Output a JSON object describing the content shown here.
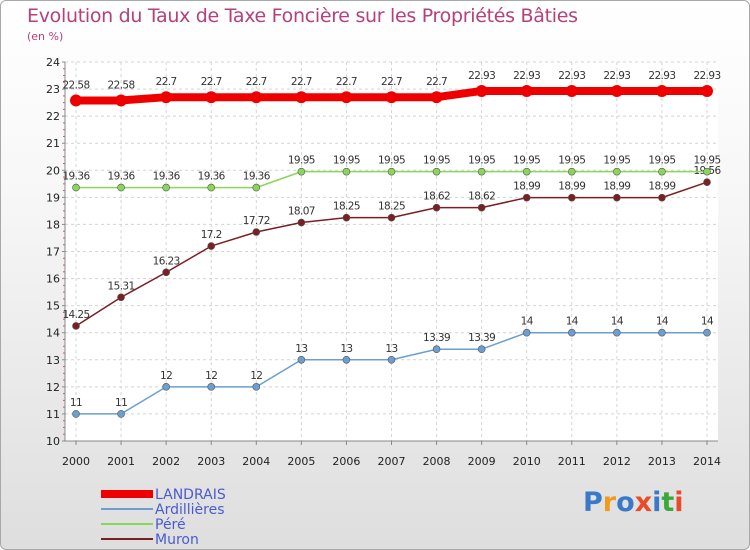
{
  "chart_data": {
    "type": "line",
    "title": "Evolution du Taux de Taxe Foncière sur les Propriétés Bâties",
    "subtitle": "(en %)",
    "x": [
      "2000",
      "2001",
      "2002",
      "2003",
      "2004",
      "2005",
      "2006",
      "2007",
      "2008",
      "2009",
      "2010",
      "2011",
      "2012",
      "2013",
      "2014"
    ],
    "yticks": [
      10,
      11,
      12,
      13,
      14,
      15,
      16,
      17,
      18,
      19,
      20,
      21,
      22,
      23,
      24
    ],
    "ylim": [
      10,
      24
    ],
    "grid": true,
    "legend_position": "bottom-left",
    "series": [
      {
        "name": "LANDRAIS",
        "color": "#ee0000",
        "values": [
          22.58,
          22.58,
          22.7,
          22.7,
          22.7,
          22.7,
          22.7,
          22.7,
          22.7,
          22.93,
          22.93,
          22.93,
          22.93,
          22.93,
          22.93
        ],
        "labels": [
          "22.58",
          "22.58",
          "22.7",
          "22.7",
          "22.7",
          "22.7",
          "22.7",
          "22.7",
          "22.7",
          "22.93",
          "22.93",
          "22.93",
          "22.93",
          "22.93",
          "22.93"
        ]
      },
      {
        "name": "Ardillières",
        "color": "#6a9fd0",
        "values": [
          11,
          11,
          12,
          12,
          12,
          13,
          13,
          13,
          13.39,
          13.39,
          14,
          14,
          14,
          14,
          14
        ],
        "labels": [
          "11",
          "11",
          "12",
          "12",
          "12",
          "13",
          "13",
          "13",
          "13.39",
          "13.39",
          "14",
          "14",
          "14",
          "14",
          "14"
        ]
      },
      {
        "name": "Péré",
        "color": "#88d858",
        "values": [
          19.36,
          19.36,
          19.36,
          19.36,
          19.36,
          19.95,
          19.95,
          19.95,
          19.95,
          19.95,
          19.95,
          19.95,
          19.95,
          19.95,
          19.95
        ],
        "labels": [
          "19.36",
          "19.36",
          "19.36",
          "19.36",
          "19.36",
          "19.95",
          "19.95",
          "19.95",
          "19.95",
          "19.95",
          "19.95",
          "19.95",
          "19.95",
          "19.95",
          "19.95"
        ]
      },
      {
        "name": "Muron",
        "color": "#7a1f24",
        "values": [
          14.25,
          15.31,
          16.23,
          17.2,
          17.72,
          18.07,
          18.25,
          18.25,
          18.62,
          18.62,
          18.99,
          18.99,
          18.99,
          18.99,
          19.56
        ],
        "labels": [
          "14.25",
          "15.31",
          "16.23",
          "17.2",
          "17.72",
          "18.07",
          "18.25",
          "18.25",
          "18.62",
          "18.62",
          "18.99",
          "18.99",
          "18.99",
          "18.99",
          "19.56"
        ]
      }
    ]
  },
  "brand": {
    "logo_text": "Proxiti"
  }
}
